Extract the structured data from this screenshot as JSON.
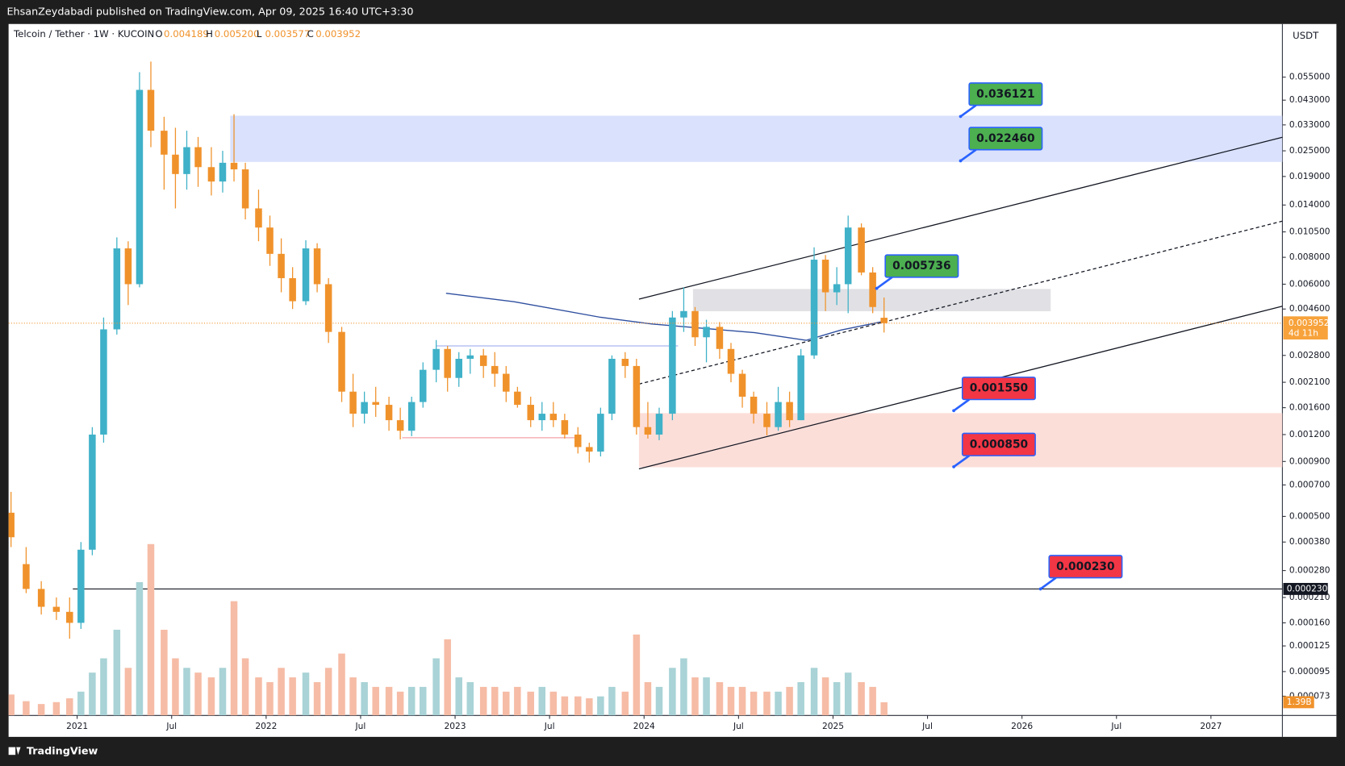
{
  "chart_data": {
    "type": "candlestick",
    "header": "EhsanZeydabadi published on TradingView.com, Apr 09, 2025 16:40 UTC+3:30",
    "legend": {
      "symbol": "Telcoin / Tether · 1W · KUCOIN",
      "ohlc": [
        {
          "key": "O",
          "value": "0.004189"
        },
        {
          "key": "H",
          "value": "0.005200"
        },
        {
          "key": "L",
          "value": "0.003577"
        },
        {
          "key": "C",
          "value": "0.003952"
        }
      ]
    },
    "currency": "USDT",
    "price_label": "0.003952",
    "countdown": "4d 11h",
    "volume_label": "1.39B",
    "footer": "TradingView",
    "log_scale": true,
    "grid": false,
    "up_color": "#3fb1c8",
    "down_color": "#f0922b",
    "volume_colors": {
      "up": "#a9d3d6",
      "down": "#f6bca6"
    },
    "xlim": [
      2020.637,
      2027.378
    ],
    "xticks": [
      {
        "value": 2021,
        "label": "2021"
      },
      {
        "value": 2021.5,
        "label": "Jul"
      },
      {
        "value": 2022,
        "label": "2022"
      },
      {
        "value": 2022.5,
        "label": "Jul"
      },
      {
        "value": 2023,
        "label": "2023"
      },
      {
        "value": 2023.5,
        "label": "Jul"
      },
      {
        "value": 2024,
        "label": "2024"
      },
      {
        "value": 2024.5,
        "label": "Jul"
      },
      {
        "value": 2025,
        "label": "2025"
      },
      {
        "value": 2025.5,
        "label": "Jul"
      },
      {
        "value": 2026,
        "label": "2026"
      },
      {
        "value": 2026.5,
        "label": "Jul"
      },
      {
        "value": 2027,
        "label": "2027"
      }
    ],
    "ylim": [
      5.94e-05,
      0.0794
    ],
    "yticks": [
      {
        "value": 0.055,
        "label": "0.055000"
      },
      {
        "value": 0.043,
        "label": "0.043000"
      },
      {
        "value": 0.033,
        "label": "0.033000"
      },
      {
        "value": 0.025,
        "label": "0.025000"
      },
      {
        "value": 0.019,
        "label": "0.019000"
      },
      {
        "value": 0.014,
        "label": "0.014000"
      },
      {
        "value": 0.0105,
        "label": "0.010500"
      },
      {
        "value": 0.008,
        "label": "0.008000"
      },
      {
        "value": 0.006,
        "label": "0.006000"
      },
      {
        "value": 0.0046,
        "label": "0.004600"
      },
      {
        "value": 0.0028,
        "label": "0.002800"
      },
      {
        "value": 0.0021,
        "label": "0.002100"
      },
      {
        "value": 0.0016,
        "label": "0.001600"
      },
      {
        "value": 0.0012,
        "label": "0.001200"
      },
      {
        "value": 0.0009,
        "label": "0.000900"
      },
      {
        "value": 0.0007,
        "label": "0.000700"
      },
      {
        "value": 0.0005,
        "label": "0.000500"
      },
      {
        "value": 0.00038,
        "label": "0.000380"
      },
      {
        "value": 0.00028,
        "label": "0.000280"
      },
      {
        "value": 0.00021,
        "label": "0.000210"
      },
      {
        "value": 0.00016,
        "label": "0.000160"
      },
      {
        "value": 0.000125,
        "label": "0.000125"
      },
      {
        "value": 9.5e-05,
        "label": "0.000095"
      },
      {
        "value": 7.3e-05,
        "label": "0.000073"
      }
    ],
    "x": [
      2020.65,
      2020.73,
      2020.81,
      2020.89,
      2020.96,
      2021.02,
      2021.08,
      2021.14,
      2021.21,
      2021.27,
      2021.33,
      2021.39,
      2021.46,
      2021.52,
      2021.58,
      2021.64,
      2021.71,
      2021.77,
      2021.83,
      2021.89,
      2021.96,
      2022.02,
      2022.08,
      2022.14,
      2022.21,
      2022.27,
      2022.33,
      2022.4,
      2022.46,
      2022.52,
      2022.58,
      2022.65,
      2022.71,
      2022.77,
      2022.83,
      2022.9,
      2022.96,
      2023.02,
      2023.08,
      2023.15,
      2023.21,
      2023.27,
      2023.33,
      2023.4,
      2023.46,
      2023.52,
      2023.58,
      2023.65,
      2023.71,
      2023.77,
      2023.83,
      2023.9,
      2023.96,
      2024.02,
      2024.08,
      2024.15,
      2024.21,
      2024.27,
      2024.33,
      2024.4,
      2024.46,
      2024.52,
      2024.58,
      2024.65,
      2024.71,
      2024.77,
      2024.83,
      2024.9,
      2024.96,
      2025.02,
      2025.08,
      2025.15,
      2025.21,
      2025.27
    ],
    "open": [
      0.00052,
      0.0003,
      0.00023,
      0.00019,
      0.00018,
      0.00016,
      0.00035,
      0.0012,
      0.0037,
      0.0088,
      0.006,
      0.048,
      0.031,
      0.024,
      0.0195,
      0.026,
      0.021,
      0.018,
      0.022,
      0.0205,
      0.0135,
      0.011,
      0.0083,
      0.0064,
      0.005,
      0.0088,
      0.006,
      0.0036,
      0.0019,
      0.0015,
      0.0017,
      0.00165,
      0.0014,
      0.00125,
      0.0017,
      0.0024,
      0.003,
      0.0022,
      0.0027,
      0.0028,
      0.0025,
      0.0023,
      0.0019,
      0.00165,
      0.0014,
      0.0015,
      0.0014,
      0.0012,
      0.00105,
      0.001,
      0.0015,
      0.0027,
      0.0025,
      0.0013,
      0.0012,
      0.0015,
      0.0042,
      0.0045,
      0.0034,
      0.0038,
      0.003,
      0.0023,
      0.0018,
      0.0015,
      0.0013,
      0.0017,
      0.0014,
      0.0028,
      0.0078,
      0.0055,
      0.006,
      0.011,
      0.0068,
      0.004189
    ],
    "high": [
      0.00065,
      0.00036,
      0.00025,
      0.00021,
      0.00021,
      0.00038,
      0.0013,
      0.0042,
      0.0099,
      0.0095,
      0.058,
      0.065,
      0.036,
      0.032,
      0.031,
      0.029,
      0.026,
      0.025,
      0.037,
      0.022,
      0.0165,
      0.0125,
      0.0098,
      0.0072,
      0.0096,
      0.0093,
      0.0064,
      0.0038,
      0.0023,
      0.0019,
      0.002,
      0.0018,
      0.0016,
      0.0018,
      0.0026,
      0.0033,
      0.0031,
      0.0029,
      0.003,
      0.003,
      0.0029,
      0.0025,
      0.002,
      0.0018,
      0.0017,
      0.0017,
      0.0015,
      0.0013,
      0.0011,
      0.0016,
      0.0028,
      0.0029,
      0.0027,
      0.0017,
      0.0016,
      0.0045,
      0.0058,
      0.0047,
      0.0041,
      0.004,
      0.0032,
      0.0024,
      0.0019,
      0.0017,
      0.002,
      0.0019,
      0.003,
      0.0089,
      0.0082,
      0.0072,
      0.0125,
      0.0115,
      0.0072,
      0.0052
    ],
    "low": [
      0.00036,
      0.00022,
      0.000175,
      0.000165,
      0.000135,
      0.00015,
      0.00033,
      0.0011,
      0.0035,
      0.0048,
      0.0058,
      0.026,
      0.0165,
      0.0135,
      0.0165,
      0.017,
      0.0155,
      0.016,
      0.018,
      0.012,
      0.0095,
      0.0073,
      0.0055,
      0.0046,
      0.0048,
      0.0055,
      0.0032,
      0.0017,
      0.0013,
      0.00135,
      0.00145,
      0.00125,
      0.00114,
      0.00118,
      0.0016,
      0.0021,
      0.0019,
      0.002,
      0.0023,
      0.0022,
      0.002,
      0.0017,
      0.0016,
      0.0013,
      0.00125,
      0.0013,
      0.00115,
      0.00098,
      0.00089,
      0.00095,
      0.0014,
      0.0022,
      0.0012,
      0.00115,
      0.00113,
      0.0014,
      0.0036,
      0.0031,
      0.0026,
      0.0027,
      0.0021,
      0.0016,
      0.00135,
      0.00119,
      0.00125,
      0.0013,
      0.0014,
      0.0027,
      0.0045,
      0.0048,
      0.0044,
      0.0066,
      0.0044,
      0.003577
    ],
    "close": [
      0.0004,
      0.00023,
      0.00019,
      0.00018,
      0.00016,
      0.00035,
      0.0012,
      0.0037,
      0.0088,
      0.006,
      0.048,
      0.031,
      0.024,
      0.0195,
      0.026,
      0.021,
      0.018,
      0.022,
      0.0205,
      0.0135,
      0.011,
      0.0083,
      0.0064,
      0.005,
      0.0088,
      0.006,
      0.0036,
      0.0019,
      0.0015,
      0.0017,
      0.00165,
      0.0014,
      0.00125,
      0.0017,
      0.0024,
      0.003,
      0.0022,
      0.0027,
      0.0028,
      0.0025,
      0.0023,
      0.0019,
      0.00165,
      0.0014,
      0.0015,
      0.0014,
      0.0012,
      0.00105,
      0.001,
      0.0015,
      0.0027,
      0.0025,
      0.0013,
      0.0012,
      0.0015,
      0.0042,
      0.0045,
      0.0034,
      0.0038,
      0.003,
      0.0023,
      0.0018,
      0.0015,
      0.0013,
      0.0017,
      0.0014,
      0.0028,
      0.0078,
      0.0055,
      0.006,
      0.011,
      0.0068,
      0.0047,
      0.003952
    ],
    "volume": [
      2.2,
      1.5,
      1.2,
      1.4,
      1.8,
      2.5,
      4.5,
      6,
      9,
      5,
      14,
      18,
      9,
      6,
      5,
      4.5,
      4,
      5,
      12,
      6,
      4,
      3.5,
      5,
      4,
      4.5,
      3.5,
      5,
      6.5,
      4,
      3.5,
      3,
      3,
      2.5,
      3,
      3,
      6,
      8,
      4,
      3.5,
      3,
      3,
      2.5,
      3,
      2.5,
      3,
      2.5,
      2,
      2,
      1.8,
      2,
      3,
      2.5,
      8.5,
      3.5,
      3,
      5,
      6,
      4,
      4,
      3.5,
      3,
      3,
      2.5,
      2.5,
      2.5,
      3,
      3.5,
      5,
      4,
      3.5,
      4.5,
      3.5,
      3,
      1.39
    ],
    "moving_average": {
      "color": "#2f4f9f",
      "x": [
        2022.952,
        2023.315,
        2023.769,
        2024.041,
        2024.314,
        2024.586,
        2024.858,
        2025.04,
        2025.267
      ],
      "values": [
        0.00545,
        0.00497,
        0.00421,
        0.00392,
        0.00374,
        0.00357,
        0.00329,
        0.00367,
        0.00403
      ]
    },
    "zones": [
      {
        "x": [
          2021.81,
          2027.378
        ],
        "y": [
          0.0222,
          0.0364
        ],
        "color": "#d2dcfc"
      },
      {
        "x": [
          2024.259,
          2026.152
        ],
        "y": [
          0.00449,
          0.0057
        ],
        "color": "#dcdce0"
      },
      {
        "x": [
          2023.973,
          2027.378
        ],
        "y": [
          0.000846,
          0.00151
        ],
        "color": "#fcd8d2"
      }
    ],
    "trendlines": [
      {
        "x": [
          2023.973,
          2027.378
        ],
        "y": [
          0.00511,
          0.0289
        ],
        "color": "#131722",
        "dashed": false
      },
      {
        "x": [
          2023.973,
          2027.378
        ],
        "y": [
          0.00206,
          0.01178
        ],
        "color": "#131722",
        "dashed": true
      },
      {
        "x": [
          2023.973,
          2027.378
        ],
        "y": [
          0.000831,
          0.00474
        ],
        "color": "#131722",
        "dashed": false
      },
      {
        "x": [
          2022.72,
          2023.65
        ],
        "y": [
          0.00116,
          0.00116
        ],
        "color": "#f4a0a8",
        "dashed": false
      },
      {
        "x": [
          2022.9,
          2024.18
        ],
        "y": [
          0.0031,
          0.0031
        ],
        "color": "#aab8f0",
        "dashed": false
      }
    ],
    "horizontal_lines": [
      {
        "x": [
          2020.977,
          2027.378
        ],
        "value": 0.00023,
        "axis_label": "0.000230",
        "color": "#131722"
      }
    ],
    "annotations": [
      {
        "x": 2025.675,
        "value": 0.036121,
        "label": "0.036121",
        "color": "#4caf50"
      },
      {
        "x": 2025.675,
        "value": 0.02246,
        "label": "0.022460",
        "color": "#4caf50"
      },
      {
        "x": 2025.231,
        "value": 0.005736,
        "label": "0.005736",
        "color": "#4caf50"
      },
      {
        "x": 2025.639,
        "value": 0.00155,
        "label": "0.001550",
        "color": "#f23645"
      },
      {
        "x": 2025.639,
        "value": 0.00085,
        "label": "0.000850",
        "color": "#f23645"
      },
      {
        "x": 2026.098,
        "value": 0.00023,
        "label": "0.000230",
        "color": "#f23645"
      }
    ]
  }
}
